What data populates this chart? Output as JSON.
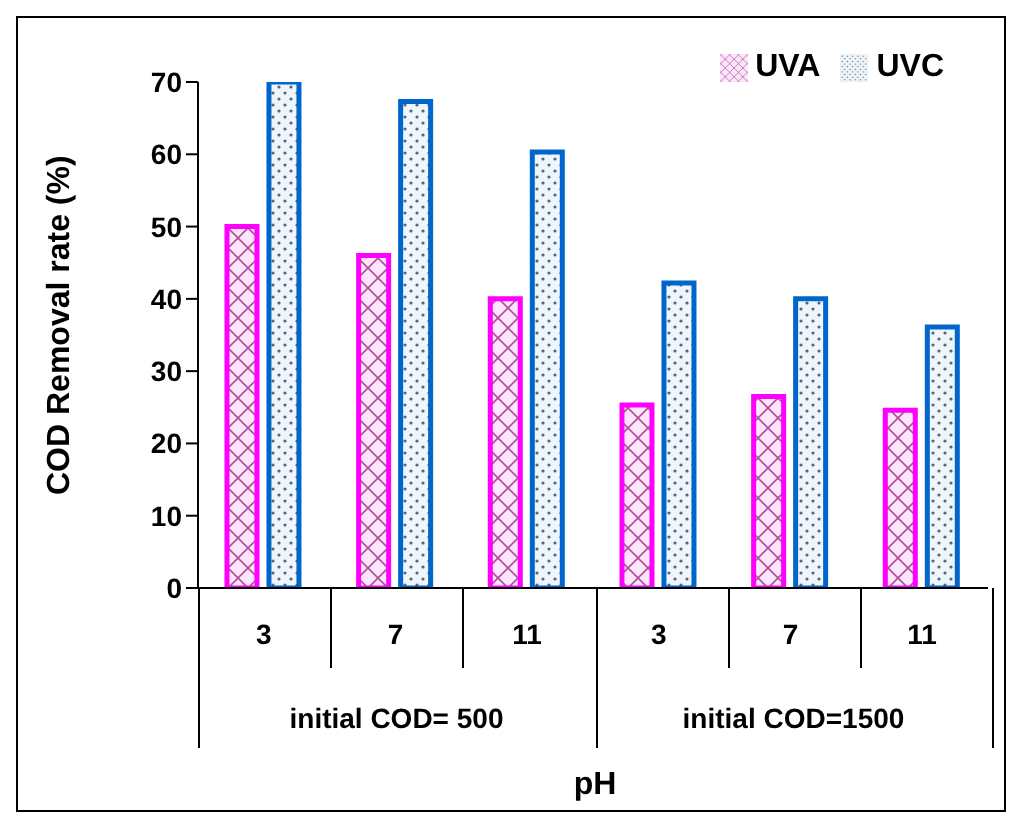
{
  "chart_data": {
    "type": "bar",
    "ylabel": "COD Removal rate (%)",
    "xlabel": "pH",
    "categories": [
      "3",
      "7",
      "11",
      "3",
      "7",
      "11"
    ],
    "series": [
      {
        "name": "UVA",
        "color": "#ff00ff",
        "values": [
          50,
          46,
          40,
          25.3,
          26.5,
          24.6
        ]
      },
      {
        "name": "UVC",
        "color": "#0066cc",
        "values": [
          70,
          67.3,
          60.3,
          42.2,
          40,
          36.1
        ]
      }
    ],
    "annotations": [
      "initial COD= 500",
      "initial COD=1500"
    ],
    "ylim": [
      0,
      70
    ],
    "yticks": [
      0,
      10,
      20,
      30,
      40,
      50,
      60,
      70
    ],
    "grid": false,
    "legend": "top right"
  }
}
